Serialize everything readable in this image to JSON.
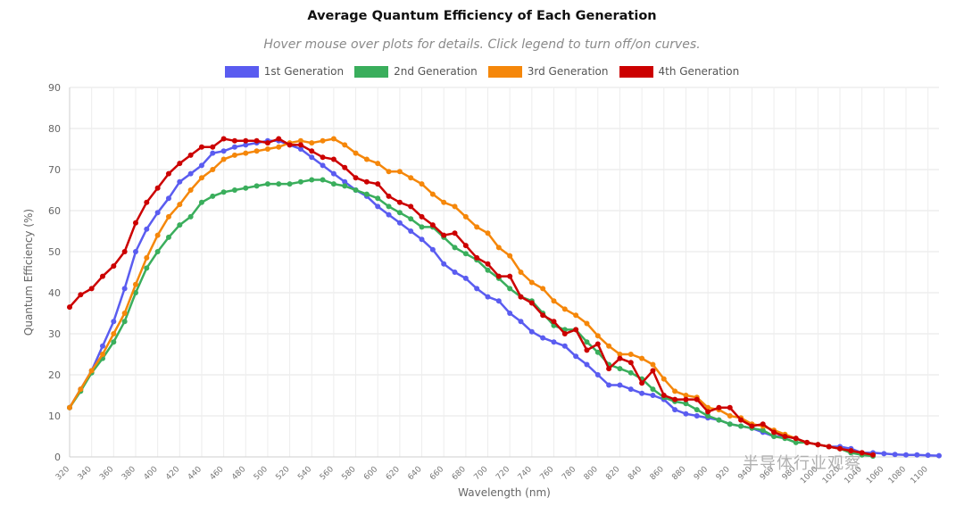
{
  "chart_data": {
    "type": "line",
    "title": "Average Quantum Efficiency of Each Generation",
    "subtitle": "Hover mouse over plots for details. Click legend to turn off/on curves.",
    "xlabel": "Wavelength (nm)",
    "ylabel": "Quantum Efficiency (%)",
    "xlim": [
      320,
      1110
    ],
    "ylim": [
      0,
      90
    ],
    "yticks": [
      0,
      10,
      20,
      30,
      40,
      50,
      60,
      70,
      80,
      90
    ],
    "xtick_labels": [
      "320",
      "340",
      "360",
      "380",
      "400",
      "420",
      "440",
      "460",
      "480",
      "500",
      "520",
      "540",
      "560",
      "580",
      "600",
      "620",
      "640",
      "660",
      "680",
      "700",
      "720",
      "740",
      "760",
      "780",
      "800",
      "820",
      "840",
      "860",
      "880",
      "900",
      "920",
      "940",
      "960",
      "980",
      "1000",
      "1020",
      "1040",
      "1060",
      "1080",
      "1100"
    ],
    "grid": true,
    "legend_position": "top-center",
    "series": [
      {
        "name": "1st Generation",
        "color": "#5a5cf0",
        "x": [
          320,
          330,
          340,
          350,
          360,
          370,
          380,
          390,
          400,
          410,
          420,
          430,
          440,
          450,
          460,
          470,
          480,
          490,
          500,
          510,
          520,
          530,
          540,
          550,
          560,
          570,
          580,
          590,
          600,
          610,
          620,
          630,
          640,
          650,
          660,
          670,
          680,
          690,
          700,
          710,
          720,
          730,
          740,
          750,
          760,
          770,
          780,
          790,
          800,
          810,
          820,
          830,
          840,
          850,
          860,
          870,
          880,
          890,
          900,
          910,
          920,
          930,
          940,
          950,
          960,
          970,
          980,
          990,
          1000,
          1010,
          1020,
          1030,
          1040,
          1050,
          1060,
          1070,
          1080,
          1090,
          1100,
          1110
        ],
        "y": [
          12,
          16.5,
          21,
          27,
          33,
          41,
          50,
          55.5,
          59.5,
          63,
          67,
          69,
          71,
          74,
          74.5,
          75.5,
          76,
          76.5,
          77,
          77,
          76,
          75,
          73,
          71,
          69,
          67,
          65,
          63.5,
          61,
          59,
          57,
          55,
          53,
          50.5,
          47,
          45,
          43.5,
          41,
          39,
          38,
          35,
          33,
          30.5,
          29,
          28,
          27,
          24.5,
          22.5,
          20,
          17.5,
          17.5,
          16.5,
          15.5,
          15,
          14,
          11.5,
          10.5,
          10,
          9.5,
          9,
          8,
          7.5,
          7,
          6,
          5,
          5,
          4.5,
          3.5,
          3,
          2.5,
          2.5,
          2,
          1,
          1,
          0.8,
          0.6,
          0.5,
          0.5,
          0.4,
          0.3
        ]
      },
      {
        "name": "2nd Generation",
        "color": "#3aae5c",
        "x": [
          320,
          330,
          340,
          350,
          360,
          370,
          380,
          390,
          400,
          410,
          420,
          430,
          440,
          450,
          460,
          470,
          480,
          490,
          500,
          510,
          520,
          530,
          540,
          550,
          560,
          570,
          580,
          590,
          600,
          610,
          620,
          630,
          640,
          650,
          660,
          670,
          680,
          690,
          700,
          710,
          720,
          730,
          740,
          750,
          760,
          770,
          780,
          790,
          800,
          810,
          820,
          830,
          840,
          850,
          860,
          870,
          880,
          890,
          900,
          910,
          920,
          930,
          940,
          950,
          960,
          970,
          980,
          990,
          1000,
          1010,
          1020,
          1030,
          1040,
          1050
        ],
        "y": [
          12,
          16,
          20.5,
          24,
          28,
          33,
          40,
          46,
          50,
          53.5,
          56.5,
          58.5,
          62,
          63.5,
          64.5,
          65,
          65.5,
          66,
          66.5,
          66.5,
          66.5,
          67,
          67.5,
          67.5,
          66.5,
          66,
          65,
          64,
          63,
          61,
          59.5,
          58,
          56,
          56,
          53.5,
          51,
          49.5,
          48,
          45.5,
          43.5,
          41,
          39,
          38,
          35,
          32,
          31,
          31,
          28,
          25.5,
          22.5,
          21.5,
          20.5,
          19,
          16.5,
          14.5,
          13.5,
          13,
          11.5,
          10,
          9,
          8,
          7.5,
          7,
          6.5,
          5,
          4.5,
          3.5,
          3.5,
          3,
          2.5,
          2,
          1,
          0.5,
          0.2
        ]
      },
      {
        "name": "3rd Generation",
        "color": "#f5870a",
        "x": [
          320,
          330,
          340,
          350,
          360,
          370,
          380,
          390,
          400,
          410,
          420,
          430,
          440,
          450,
          460,
          470,
          480,
          490,
          500,
          510,
          520,
          530,
          540,
          550,
          560,
          570,
          580,
          590,
          600,
          610,
          620,
          630,
          640,
          650,
          660,
          670,
          680,
          690,
          700,
          710,
          720,
          730,
          740,
          750,
          760,
          770,
          780,
          790,
          800,
          810,
          820,
          830,
          840,
          850,
          860,
          870,
          880,
          890,
          900,
          910,
          920,
          930,
          940,
          950,
          960,
          970,
          980,
          990,
          1000,
          1010,
          1020,
          1030,
          1040,
          1050
        ],
        "y": [
          12,
          16.5,
          21,
          25,
          30,
          35,
          42,
          48.5,
          54,
          58.5,
          61.5,
          65,
          68,
          70,
          72.5,
          73.5,
          74,
          74.5,
          75,
          75.5,
          76.5,
          77,
          76.5,
          77,
          77.5,
          76,
          74,
          72.5,
          71.5,
          69.5,
          69.5,
          68,
          66.5,
          64,
          62,
          61,
          58.5,
          56,
          54.5,
          51,
          49,
          45,
          42.5,
          41,
          38,
          36,
          34.5,
          32.5,
          29.5,
          27,
          25,
          25,
          24,
          22.5,
          19,
          16,
          15,
          14.5,
          12,
          11.5,
          10,
          9.5,
          8,
          7.5,
          6.5,
          5.5,
          4.5,
          3.5,
          3,
          2.5,
          2,
          1.5,
          1,
          0.5
        ]
      },
      {
        "name": "4th Generation",
        "color": "#cc0000",
        "x": [
          320,
          330,
          340,
          350,
          360,
          370,
          380,
          390,
          400,
          410,
          420,
          430,
          440,
          450,
          460,
          470,
          480,
          490,
          500,
          510,
          520,
          530,
          540,
          550,
          560,
          570,
          580,
          590,
          600,
          610,
          620,
          630,
          640,
          650,
          660,
          670,
          680,
          690,
          700,
          710,
          720,
          730,
          740,
          750,
          760,
          770,
          780,
          790,
          800,
          810,
          820,
          830,
          840,
          850,
          860,
          870,
          880,
          890,
          900,
          910,
          920,
          930,
          940,
          950,
          960,
          970,
          980,
          990,
          1000,
          1010,
          1020,
          1030,
          1040,
          1050
        ],
        "y": [
          36.5,
          39.5,
          41,
          44,
          46.5,
          50,
          57,
          62,
          65.5,
          69,
          71.5,
          73.5,
          75.5,
          75.5,
          77.5,
          77,
          77,
          77,
          76.5,
          77.5,
          76,
          76,
          74.5,
          73,
          72.5,
          70.5,
          68,
          67,
          66.5,
          63.5,
          62,
          61,
          58.5,
          56.5,
          54,
          54.5,
          51.5,
          48.5,
          47,
          44,
          44,
          39,
          37.5,
          34.5,
          33,
          30,
          31,
          26,
          27.5,
          21.5,
          24,
          23,
          18,
          21,
          15,
          14,
          14,
          14,
          11,
          12,
          12,
          9,
          7.5,
          8,
          6,
          5,
          4.5,
          3.5,
          3,
          2.5,
          2,
          1.5,
          1,
          0.5
        ]
      }
    ]
  },
  "watermark": "半导体行业观察"
}
